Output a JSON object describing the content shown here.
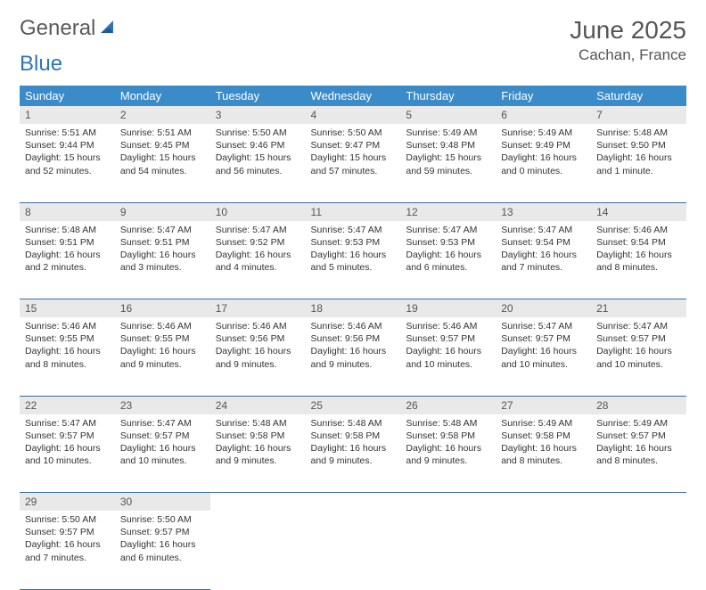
{
  "logo": {
    "word1": "General",
    "word2": "Blue"
  },
  "title": {
    "month_year": "June 2025",
    "location": "Cachan, France"
  },
  "weekdays": [
    "Sunday",
    "Monday",
    "Tuesday",
    "Wednesday",
    "Thursday",
    "Friday",
    "Saturday"
  ],
  "colors": {
    "header_bg": "#3b8bc9",
    "header_text": "#ffffff",
    "daynum_bg": "#e9e9e9",
    "row_border": "#3b6fa0",
    "logo_gray": "#5a5a5a",
    "logo_blue": "#2e75b6"
  },
  "weeks": [
    [
      {
        "n": "1",
        "sr": "5:51 AM",
        "ss": "9:44 PM",
        "dl": "15 hours and 52 minutes."
      },
      {
        "n": "2",
        "sr": "5:51 AM",
        "ss": "9:45 PM",
        "dl": "15 hours and 54 minutes."
      },
      {
        "n": "3",
        "sr": "5:50 AM",
        "ss": "9:46 PM",
        "dl": "15 hours and 56 minutes."
      },
      {
        "n": "4",
        "sr": "5:50 AM",
        "ss": "9:47 PM",
        "dl": "15 hours and 57 minutes."
      },
      {
        "n": "5",
        "sr": "5:49 AM",
        "ss": "9:48 PM",
        "dl": "15 hours and 59 minutes."
      },
      {
        "n": "6",
        "sr": "5:49 AM",
        "ss": "9:49 PM",
        "dl": "16 hours and 0 minutes."
      },
      {
        "n": "7",
        "sr": "5:48 AM",
        "ss": "9:50 PM",
        "dl": "16 hours and 1 minute."
      }
    ],
    [
      {
        "n": "8",
        "sr": "5:48 AM",
        "ss": "9:51 PM",
        "dl": "16 hours and 2 minutes."
      },
      {
        "n": "9",
        "sr": "5:47 AM",
        "ss": "9:51 PM",
        "dl": "16 hours and 3 minutes."
      },
      {
        "n": "10",
        "sr": "5:47 AM",
        "ss": "9:52 PM",
        "dl": "16 hours and 4 minutes."
      },
      {
        "n": "11",
        "sr": "5:47 AM",
        "ss": "9:53 PM",
        "dl": "16 hours and 5 minutes."
      },
      {
        "n": "12",
        "sr": "5:47 AM",
        "ss": "9:53 PM",
        "dl": "16 hours and 6 minutes."
      },
      {
        "n": "13",
        "sr": "5:47 AM",
        "ss": "9:54 PM",
        "dl": "16 hours and 7 minutes."
      },
      {
        "n": "14",
        "sr": "5:46 AM",
        "ss": "9:54 PM",
        "dl": "16 hours and 8 minutes."
      }
    ],
    [
      {
        "n": "15",
        "sr": "5:46 AM",
        "ss": "9:55 PM",
        "dl": "16 hours and 8 minutes."
      },
      {
        "n": "16",
        "sr": "5:46 AM",
        "ss": "9:55 PM",
        "dl": "16 hours and 9 minutes."
      },
      {
        "n": "17",
        "sr": "5:46 AM",
        "ss": "9:56 PM",
        "dl": "16 hours and 9 minutes."
      },
      {
        "n": "18",
        "sr": "5:46 AM",
        "ss": "9:56 PM",
        "dl": "16 hours and 9 minutes."
      },
      {
        "n": "19",
        "sr": "5:46 AM",
        "ss": "9:57 PM",
        "dl": "16 hours and 10 minutes."
      },
      {
        "n": "20",
        "sr": "5:47 AM",
        "ss": "9:57 PM",
        "dl": "16 hours and 10 minutes."
      },
      {
        "n": "21",
        "sr": "5:47 AM",
        "ss": "9:57 PM",
        "dl": "16 hours and 10 minutes."
      }
    ],
    [
      {
        "n": "22",
        "sr": "5:47 AM",
        "ss": "9:57 PM",
        "dl": "16 hours and 10 minutes."
      },
      {
        "n": "23",
        "sr": "5:47 AM",
        "ss": "9:57 PM",
        "dl": "16 hours and 10 minutes."
      },
      {
        "n": "24",
        "sr": "5:48 AM",
        "ss": "9:58 PM",
        "dl": "16 hours and 9 minutes."
      },
      {
        "n": "25",
        "sr": "5:48 AM",
        "ss": "9:58 PM",
        "dl": "16 hours and 9 minutes."
      },
      {
        "n": "26",
        "sr": "5:48 AM",
        "ss": "9:58 PM",
        "dl": "16 hours and 9 minutes."
      },
      {
        "n": "27",
        "sr": "5:49 AM",
        "ss": "9:58 PM",
        "dl": "16 hours and 8 minutes."
      },
      {
        "n": "28",
        "sr": "5:49 AM",
        "ss": "9:57 PM",
        "dl": "16 hours and 8 minutes."
      }
    ],
    [
      {
        "n": "29",
        "sr": "5:50 AM",
        "ss": "9:57 PM",
        "dl": "16 hours and 7 minutes."
      },
      {
        "n": "30",
        "sr": "5:50 AM",
        "ss": "9:57 PM",
        "dl": "16 hours and 6 minutes."
      },
      null,
      null,
      null,
      null,
      null
    ]
  ],
  "labels": {
    "sunrise": "Sunrise: ",
    "sunset": "Sunset: ",
    "daylight": "Daylight: "
  }
}
